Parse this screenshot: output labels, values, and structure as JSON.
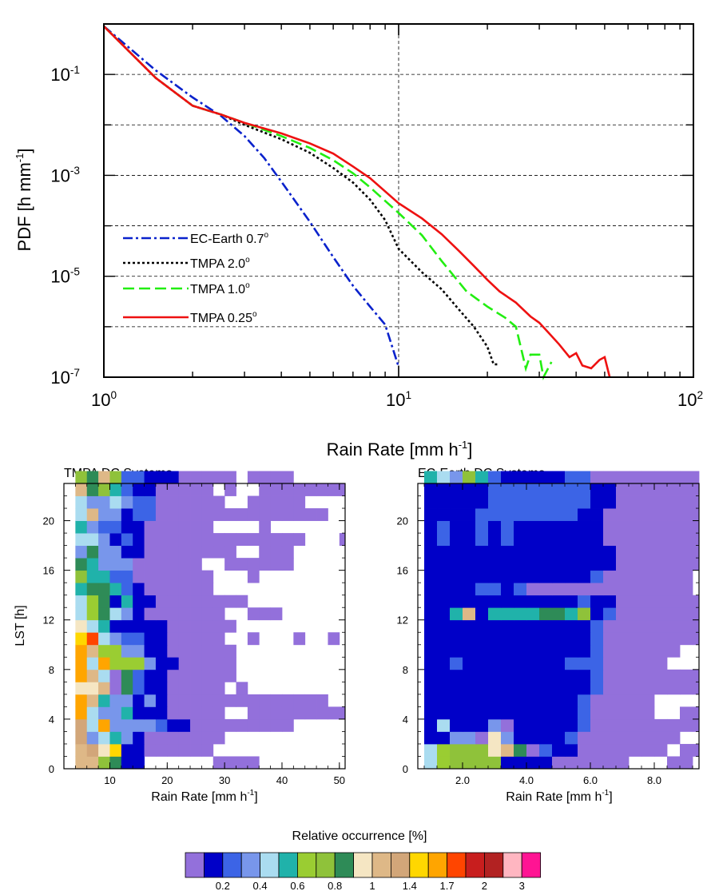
{
  "chart_data": [
    {
      "type": "line",
      "xlabel": "Rain Rate [mm h",
      "xlabel_sup": "-1",
      "xlabel_end": "]",
      "ylabel": "PDF [h mm",
      "ylabel_sup": "-1",
      "ylabel_end": "]",
      "xscale": "log",
      "yscale": "log",
      "xlim": [
        1,
        100
      ],
      "ylim": [
        1e-07,
        1
      ],
      "x_ticks": [
        {
          "value": 1,
          "base": "10",
          "exp": "0"
        },
        {
          "value": 10,
          "base": "10",
          "exp": "1"
        },
        {
          "value": 100,
          "base": "10",
          "exp": "2"
        }
      ],
      "y_ticks": [
        {
          "value": 0.1,
          "base": "10",
          "exp": "-1"
        },
        {
          "value": 0.001,
          "base": "10",
          "exp": "-3"
        },
        {
          "value": 1e-05,
          "base": "10",
          "exp": "-5"
        },
        {
          "value": 1e-07,
          "base": "10",
          "exp": "-7"
        }
      ],
      "grid": {
        "horizontal_at": [
          0.1,
          0.01,
          0.001,
          0.0001,
          1e-05,
          1e-06
        ],
        "vertical_at": [
          10
        ],
        "style": "dashed"
      },
      "legend_position": "lower-left",
      "series": [
        {
          "name": "EC-Earth 0.7",
          "name_sup": "o",
          "color": "#0a22cc",
          "dash": "dashdot",
          "points": [
            [
              1.0,
              0.9
            ],
            [
              1.5,
              0.12
            ],
            [
              2.0,
              0.035
            ],
            [
              2.5,
              0.015
            ],
            [
              3.0,
              0.006
            ],
            [
              3.5,
              0.0022
            ],
            [
              4.0,
              0.00075
            ],
            [
              5.0,
              0.00012
            ],
            [
              6.0,
              2.4e-05
            ],
            [
              7.0,
              6.5e-06
            ],
            [
              8.0,
              2.5e-06
            ],
            [
              9.0,
              1.1e-06
            ],
            [
              10.0,
              1.6e-07
            ]
          ]
        },
        {
          "name": "TMPA 2.0",
          "name_sup": "o",
          "color": "#000000",
          "dash": "dotted",
          "points": [
            [
              1.0,
              0.9
            ],
            [
              1.5,
              0.085
            ],
            [
              2.0,
              0.024
            ],
            [
              2.5,
              0.016
            ],
            [
              3.0,
              0.01
            ],
            [
              4.0,
              0.0052
            ],
            [
              5.0,
              0.0028
            ],
            [
              6.0,
              0.0014
            ],
            [
              7.0,
              0.00072
            ],
            [
              8.0,
              0.00033
            ],
            [
              9.0,
              0.00013
            ],
            [
              10.0,
              3.5e-05
            ],
            [
              12.0,
              1.2e-05
            ],
            [
              14.0,
              5.5e-06
            ],
            [
              16.0,
              2.2e-06
            ],
            [
              18.0,
              1e-06
            ],
            [
              20.0,
              4e-07
            ],
            [
              21.0,
              1.8e-07
            ],
            [
              22.0,
              1.8e-07
            ]
          ]
        },
        {
          "name": "TMPA 1.0",
          "name_sup": "o",
          "color": "#22ee11",
          "dash": "dashed",
          "points": [
            [
              1.0,
              0.9
            ],
            [
              1.5,
              0.085
            ],
            [
              2.0,
              0.024
            ],
            [
              2.5,
              0.016
            ],
            [
              3.0,
              0.011
            ],
            [
              4.0,
              0.006
            ],
            [
              5.0,
              0.0035
            ],
            [
              6.0,
              0.002
            ],
            [
              7.0,
              0.0011
            ],
            [
              8.0,
              0.00058
            ],
            [
              10.0,
              0.00018
            ],
            [
              12.0,
              6.5e-05
            ],
            [
              14.0,
              2e-05
            ],
            [
              17.0,
              5e-06
            ],
            [
              20.0,
              2.5e-06
            ],
            [
              23.0,
              1.5e-06
            ],
            [
              25.0,
              1e-06
            ],
            [
              27.0,
              1.5e-07
            ],
            [
              28.0,
              2.8e-07
            ],
            [
              30.0,
              2.8e-07
            ],
            [
              31.0,
              1e-07
            ],
            [
              33.0,
              2e-07
            ]
          ]
        },
        {
          "name": "TMPA 0.25",
          "name_sup": "o",
          "color": "#ee1111",
          "dash": "solid",
          "points": [
            [
              1.0,
              0.9
            ],
            [
              1.5,
              0.085
            ],
            [
              2.0,
              0.024
            ],
            [
              2.5,
              0.016
            ],
            [
              3.0,
              0.011
            ],
            [
              4.0,
              0.0068
            ],
            [
              5.0,
              0.0043
            ],
            [
              6.0,
              0.0027
            ],
            [
              7.0,
              0.0015
            ],
            [
              8.0,
              0.00088
            ],
            [
              10.0,
              0.00028
            ],
            [
              12.0,
              0.00014
            ],
            [
              14.0,
              6.8e-05
            ],
            [
              16.0,
              3.2e-05
            ],
            [
              18.0,
              1.6e-05
            ],
            [
              20.0,
              8.5e-06
            ],
            [
              22.0,
              5e-06
            ],
            [
              25.0,
              3e-06
            ],
            [
              28.0,
              1.6e-06
            ],
            [
              30.0,
              1.2e-06
            ],
            [
              32.0,
              8e-07
            ],
            [
              35.0,
              4.5e-07
            ],
            [
              38.0,
              2.5e-07
            ],
            [
              40.0,
              3e-07
            ],
            [
              42.0,
              1.7e-07
            ],
            [
              45.0,
              1.5e-07
            ],
            [
              48.0,
              2.2e-07
            ],
            [
              50.0,
              2.5e-07
            ],
            [
              52.0,
              1e-07
            ]
          ]
        }
      ]
    },
    {
      "type": "heatmap",
      "title": "TMPA DC Systems",
      "xlabel": "Rain Rate [mm h",
      "xlabel_sup": "-1",
      "xlabel_end": "]",
      "ylabel": "LST [h]",
      "xlim": [
        2,
        51
      ],
      "ylim": [
        0,
        23
      ],
      "x_bin_start": 4,
      "x_bin_width": 2,
      "x_ticks": [
        {
          "value": 10,
          "label": "10"
        },
        {
          "value": 20,
          "label": "20"
        },
        {
          "value": 30,
          "label": "30"
        },
        {
          "value": 40,
          "label": "40"
        },
        {
          "value": 50,
          "label": "50"
        }
      ],
      "y_ticks": [
        {
          "value": 0,
          "label": "0"
        },
        {
          "value": 4,
          "label": "4"
        },
        {
          "value": 8,
          "label": "8"
        },
        {
          "value": 12,
          "label": "12"
        },
        {
          "value": 16,
          "label": "16"
        },
        {
          "value": 20,
          "label": "20"
        }
      ],
      "rows": [
        "EEB7ZZ000000AAAA00000000",
        "EHDFZZAAAAAA0000000000000",
        "H9C69ZAAAAAAA0000000000",
        "HCG9999YZZAAAAAAAAA0000000",
        "GC996ZZZAAAAA00AAAAAAAAA",
        "GE699Z9ZAAAAAAAAAAAAAA",
        "DDEA7YZZAAAAA0A0",
        "GECA7YZZAAAAAA",
        "GCG8889ZZAAAAA",
        "GE8899ZZAAAAAA",
        "F1C9YYZZAAAAA00A000A00A000A",
        "DC6ZZZZZAAAAAA",
        "C87C9ZAAAAAAA00AAA",
        "C87Z6ZZAAAAAAAA",
        "6776YZAAAAAA",
        "B66YYAAAAAAA000A",
        "76999AAAAAA00AAAAAA",
        "9799ZZAAAAAAAA00AAA",
        "CC9ZYZAAAAAAAAAAAAAA000A",
        "69YYZZAAAAAA0000A",
        "CE99ZYYAAAAAAAAAAAAAAA",
        "C99C9YYAAAAAA00AAAAA0000A",
        "E7B6YZZAAAAA0A00AAAAAAAA",
        "B7EBYYZZZAAAAA0AAAA0000000A"
      ]
    },
    {
      "type": "heatmap",
      "title": "EC-Earth DC Systems",
      "xlabel": "Rain Rate [mm h",
      "xlabel_sup": "-1",
      "xlabel_end": "]",
      "xlim": [
        0.6,
        9.4
      ],
      "ylim": [
        0,
        23
      ],
      "x_bin_start": 0.8,
      "x_bin_width": 0.4,
      "x_ticks": [
        {
          "value": 2.0,
          "label": "2.0"
        },
        {
          "value": 4.0,
          "label": "4.0"
        },
        {
          "value": 6.0,
          "label": "6.0"
        },
        {
          "value": 8.0,
          "label": "8.0"
        }
      ],
      "y_ticks": [
        {
          "value": 0,
          "label": "0"
        },
        {
          "value": 4,
          "label": "4"
        },
        {
          "value": 8,
          "label": "8"
        },
        {
          "value": 12,
          "label": "12"
        },
        {
          "value": 16,
          "label": "16"
        },
        {
          "value": 20,
          "label": "20"
        }
      ],
      "rows": [
        "C8BBBBZZZZAAAAAA000AA",
        "C8BBBDE7AYZZAAAAAAA0AA",
        "ZZ99AD9ZZZZYAAAAAAAA",
        "ZCZZZ9AZZZZZYAAAAAAAAA",
        "ZZZZZZZZZZZZYAAAAA00AAA000000AA00AA",
        "ZZZZZZZZZZZZYAAAAA00000A0",
        "ZZZZZZZZZZZZZYAAAAAAAAA",
        "ZZZZZZZZZZZZZYAAAAAAAA",
        "ZZYZZZZZZZZYYYAAAAA0000000000A",
        "ZZZZZZZZZZZZZYAAAAAA0000A",
        "ZZZZZZZZZZZZZYAAAAAAAAAAAA00000000A",
        "ZZZZZZZZZZZZZYAAAAAAAA",
        "ZZ6EZ6666776BZYAAAAAAAAAA",
        "ZZZZZZZZZZZZYZZAAAAAAAAAA",
        "ZZZZYYZYAAAAAAAAAAAAA",
        "ZZZZZZZZZZZZZYAAAAAAA0AA000AA00A",
        "ZZZZZZZZZZZZZZZAAAAAAAAAAAA",
        "ZZZZZZZZZZZZZZZAAAAAAAAA",
        "ZYZZYZYZZZZZZZAAAAAAAAAAAA",
        "ZYZZYZYZZZZZZZAAAAAAAAAA",
        "ZZZZYYYYYYYYZZAAAAAAAAAAAAA0000AAAAA",
        "ZZZZZYYYYYYYYZZAAAAAAAAAAAAAA",
        "ZZZZZYYYYYYYYZZAAAAAAAAAAAA",
        "6C9B6YZZZZZYYAAAAAAAAAAAAAA"
      ]
    }
  ],
  "colorbar": {
    "title": "Relative occurrence [%]",
    "colors": [
      "#9370db",
      "#0000c8",
      "#3c64e6",
      "#7896eb",
      "#aadcf0",
      "#20b2aa",
      "#9acd32",
      "#8fc23a",
      "#2e8b57",
      "#f5e6c3",
      "#deb887",
      "#d2a679",
      "#ffd700",
      "#ffa500",
      "#ff4500",
      "#c81e1e",
      "#b22222",
      "#ffb6c1",
      "#ff1493"
    ],
    "labels": [
      {
        "after": 1,
        "text": "0.2"
      },
      {
        "after": 3,
        "text": "0.4"
      },
      {
        "after": 5,
        "text": "0.6"
      },
      {
        "after": 7,
        "text": "0.8"
      },
      {
        "after": 9,
        "text": "1"
      },
      {
        "after": 11,
        "text": "1.4"
      },
      {
        "after": 13,
        "text": "1.7"
      },
      {
        "after": 15,
        "text": "2"
      },
      {
        "after": 17,
        "text": "3"
      }
    ]
  },
  "palette_codes": {
    "A": "#9370db",
    "Z": "#0000c8",
    "Y": "#3c64e6",
    "9": "#7896eb",
    "C": "#aadcf0",
    "6": "#20b2aa",
    "8": "#9acd32",
    "B": "#8fc23a",
    "7": "#2e8b57",
    "D": "#f5e6c3",
    "E": "#deb887",
    "H": "#d2a679",
    "F": "#ffd700",
    "G": "#ffa500",
    "1": "#ff4500",
    "2": "#c81e1e",
    "3": "#b22222",
    "0": ""
  }
}
